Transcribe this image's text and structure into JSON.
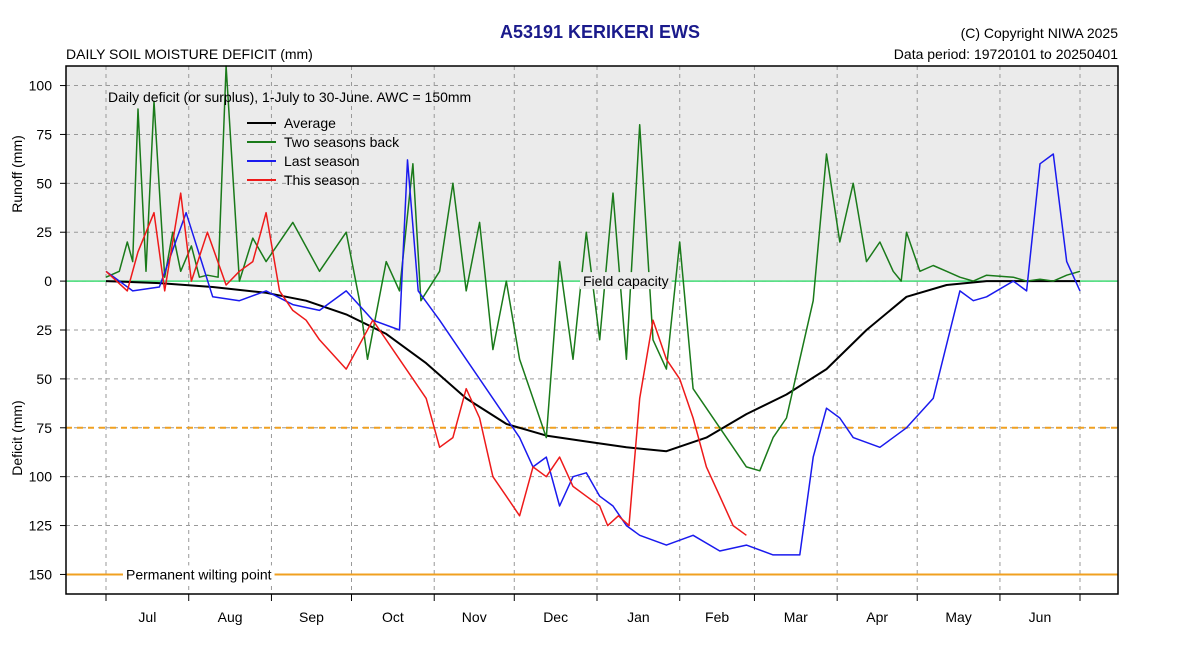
{
  "header": {
    "title": "A53191  KERIKERI EWS",
    "copyright": "(C) Copyright NIWA  2025",
    "data_period": "Data period:  19720101  to  20250401",
    "subtitle": "DAILY SOIL MOISTURE DEFICIT (mm)"
  },
  "chart_data": {
    "type": "line",
    "title": "A53191  KERIKERI EWS",
    "subtitle": "DAILY SOIL MOISTURE DEFICIT (mm)",
    "annotation": "Daily deficit (or surplus), 1-July to 30-June.  AWC = 150mm",
    "ylabel_top": "Runoff (mm)",
    "ylabel_bottom": "Deficit (mm)",
    "ylim": [
      -160,
      110
    ],
    "y_ticks": [
      100,
      75,
      50,
      25,
      0,
      -25,
      -50,
      -75,
      -100,
      -125,
      -150
    ],
    "y_tick_labels": [
      "100",
      "75",
      "50",
      "25",
      "0",
      "25",
      "50",
      "75",
      "100",
      "125",
      "150"
    ],
    "x_months": [
      "Jul",
      "Aug",
      "Sep",
      "Oct",
      "Nov",
      "Dec",
      "Jan",
      "Feb",
      "Mar",
      "Apr",
      "May",
      "Jun"
    ],
    "xlim_days": [
      0,
      365
    ],
    "grid": true,
    "legend_position": "top-left",
    "reference_lines": [
      {
        "label": "Field capacity",
        "y": 0,
        "color": "#44dd77"
      },
      {
        "label": "",
        "y": -75,
        "color": "#f0a020"
      },
      {
        "label": "Permanent wilting point",
        "y": -150,
        "color": "#f0a020"
      }
    ],
    "series": [
      {
        "name": "Average",
        "color": "#000000",
        "x": [
          0,
          20,
          40,
          60,
          75,
          90,
          105,
          120,
          135,
          150,
          165,
          180,
          195,
          210,
          225,
          240,
          255,
          270,
          285,
          300,
          315,
          330,
          345,
          365
        ],
        "y": [
          0,
          -1,
          -3,
          -6,
          -10,
          -17,
          -27,
          -42,
          -60,
          -73,
          -79,
          -82,
          -85,
          -87,
          -80,
          -68,
          -58,
          -45,
          -25,
          -8,
          -2,
          0,
          0,
          0
        ]
      },
      {
        "name": "Two seasons back",
        "color": "#1a7a1a",
        "x": [
          0,
          5,
          8,
          10,
          12,
          15,
          18,
          22,
          25,
          28,
          32,
          35,
          38,
          42,
          45,
          50,
          55,
          60,
          70,
          80,
          90,
          95,
          98,
          105,
          110,
          115,
          118,
          125,
          130,
          135,
          140,
          145,
          150,
          155,
          160,
          165,
          170,
          175,
          180,
          185,
          190,
          195,
          200,
          205,
          210,
          215,
          220,
          225,
          230,
          235,
          240,
          245,
          250,
          255,
          260,
          265,
          270,
          275,
          280,
          285,
          290,
          295,
          298,
          300,
          305,
          310,
          315,
          320,
          325,
          330,
          340,
          345,
          350,
          355,
          360,
          365
        ],
        "y": [
          2,
          5,
          20,
          10,
          88,
          5,
          92,
          2,
          25,
          5,
          18,
          2,
          3,
          2,
          110,
          0,
          22,
          10,
          30,
          5,
          25,
          -10,
          -40,
          10,
          -5,
          60,
          -10,
          5,
          50,
          -5,
          30,
          -35,
          0,
          -40,
          -60,
          -80,
          10,
          -40,
          25,
          -30,
          45,
          -40,
          80,
          -30,
          -45,
          20,
          -55,
          -65,
          -75,
          -85,
          -95,
          -97,
          -80,
          -70,
          -40,
          -10,
          65,
          20,
          50,
          10,
          20,
          5,
          0,
          25,
          5,
          8,
          5,
          2,
          0,
          3,
          2,
          0,
          1,
          0,
          3,
          5
        ]
      },
      {
        "name": "Last season",
        "color": "#1a1aee",
        "x": [
          0,
          10,
          20,
          30,
          40,
          50,
          60,
          70,
          80,
          90,
          100,
          110,
          113,
          117,
          125,
          135,
          145,
          155,
          160,
          165,
          170,
          175,
          180,
          185,
          190,
          195,
          200,
          210,
          220,
          230,
          240,
          250,
          260,
          265,
          270,
          275,
          280,
          290,
          300,
          310,
          320,
          325,
          330,
          340,
          345,
          350,
          355,
          360,
          365
        ],
        "y": [
          5,
          -5,
          -3,
          35,
          -8,
          -10,
          -5,
          -12,
          -15,
          -5,
          -20,
          -25,
          62,
          -5,
          -20,
          -40,
          -60,
          -80,
          -95,
          -90,
          -115,
          -100,
          -98,
          -110,
          -115,
          -125,
          -130,
          -135,
          -130,
          -138,
          -135,
          -140,
          -140,
          -90,
          -65,
          -70,
          -80,
          -85,
          -75,
          -60,
          -5,
          -10,
          -8,
          0,
          -5,
          60,
          65,
          10,
          -5
        ]
      },
      {
        "name": "This season",
        "color": "#ee1a1a",
        "x": [
          0,
          8,
          12,
          18,
          22,
          28,
          32,
          38,
          45,
          50,
          55,
          60,
          65,
          70,
          75,
          80,
          90,
          100,
          110,
          120,
          125,
          130,
          135,
          140,
          145,
          150,
          155,
          160,
          165,
          170,
          175,
          180,
          185,
          188,
          192,
          196,
          200,
          205,
          210,
          215,
          220,
          225,
          230,
          235,
          240
        ],
        "y": [
          5,
          -5,
          15,
          35,
          -5,
          45,
          0,
          25,
          -2,
          5,
          10,
          35,
          -5,
          -15,
          -20,
          -30,
          -45,
          -20,
          -40,
          -60,
          -85,
          -80,
          -55,
          -70,
          -100,
          -110,
          -120,
          -95,
          -100,
          -90,
          -105,
          -110,
          -115,
          -125,
          -120,
          -125,
          -60,
          -20,
          -40,
          -50,
          -70,
          -95,
          -110,
          -125,
          -130
        ]
      }
    ]
  }
}
